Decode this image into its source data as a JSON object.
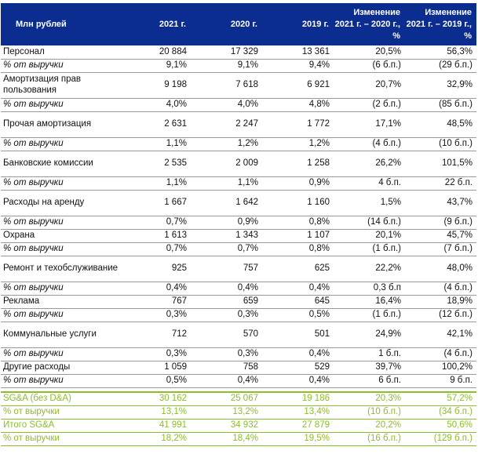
{
  "header": [
    "Млн рублей",
    "2021 г.",
    "2020 г.",
    "2019 г.",
    "Изменение 2021 г. – 2020 г., %",
    "Изменение 2021 г. – 2019 г., %"
  ],
  "rows": [
    [
      "Персонал",
      "20 884",
      "17 329",
      "13 361",
      "20,5%",
      "56,3%"
    ],
    [
      "% от выручки",
      "9,1%",
      "9,1%",
      "9,4%",
      "(6 б.п.)",
      "(29 б.п.)"
    ],
    [
      "Амортизация прав пользования",
      "9 198",
      "7 618",
      "6 921",
      "20,7%",
      "32,9%"
    ],
    [
      "% от выручки",
      "4,0%",
      "4,0%",
      "4,8%",
      "(2 б.п.)",
      "(85 б.п.)"
    ],
    [
      "Прочая амортизация",
      "2 631",
      "2 247",
      "1 772",
      "17,1%",
      "48,5%"
    ],
    [
      "% от выручки",
      "1,1%",
      "1,2%",
      "1,2%",
      "(4 б.п.)",
      "(10 б.п.)"
    ],
    [
      "Банковские комиссии",
      "2 535",
      "2 009",
      "1 258",
      "26,2%",
      "101,5%"
    ],
    [
      "% от выручки",
      "1,1%",
      "1,1%",
      "0,9%",
      "4 б.п.",
      "22 б.п."
    ],
    [
      "Расходы на аренду",
      "1 667",
      "1 642",
      "1 160",
      "1,5%",
      "43,7%"
    ],
    [
      "% от выручки",
      "0,7%",
      "0,9%",
      "0,8%",
      "(14 б.п.)",
      "(9 б.п.)"
    ],
    [
      "Охрана",
      "1 613",
      "1 343",
      "1 107",
      "20,1%",
      "45,7%"
    ],
    [
      "% от выручки",
      "0,7%",
      "0,7%",
      "0,8%",
      "(1 б.п.)",
      "(7 б.п.)"
    ],
    [
      "Ремонт и техобслуживание",
      "925",
      "757",
      "625",
      "22,2%",
      "48,0%"
    ],
    [
      "% от выручки",
      "0,4%",
      "0,4%",
      "0,4%",
      "0,3 б.п",
      "(4 б.п.)"
    ],
    [
      "Реклама",
      "767",
      "659",
      "645",
      "16,4%",
      "18,9%"
    ],
    [
      "% от выручки",
      "0,3%",
      "0,3%",
      "0,5%",
      "(1 б.п.)",
      "(12 б.п.)"
    ],
    [
      "Коммунальные услуги",
      "712",
      "570",
      "501",
      "24,9%",
      "42,1%"
    ],
    [
      "% от выручки",
      "0,3%",
      "0,3%",
      "0,4%",
      "1 б.п.",
      "(4 б.п.)"
    ],
    [
      "Другие расходы",
      "1 059",
      "758",
      "529",
      "39,7%",
      "100,2%"
    ],
    [
      "% от выручки",
      "0,5%",
      "0,4%",
      "0,4%",
      "6 б.п.",
      "9 б.п."
    ],
    [
      "SG&A (без D&A)",
      "30 162",
      "25 067",
      "19 186",
      "20,3%",
      "57,2%"
    ],
    [
      "% от выручки",
      "13,1%",
      "13,2%",
      "13,4%",
      "(10 б.п.)",
      "(34 б.п.)"
    ],
    [
      "Итого SG&A",
      "41 991",
      "34 932",
      "27 879",
      "20,2%",
      "50,6%"
    ],
    [
      "% от выручки",
      "18,2%",
      "18,4%",
      "19,5%",
      "(16 б.п.)",
      "(129 б.п.)"
    ]
  ],
  "styles": {
    "header_bg": "#0b2d8f",
    "highlight_color": "#8cbd2e"
  }
}
